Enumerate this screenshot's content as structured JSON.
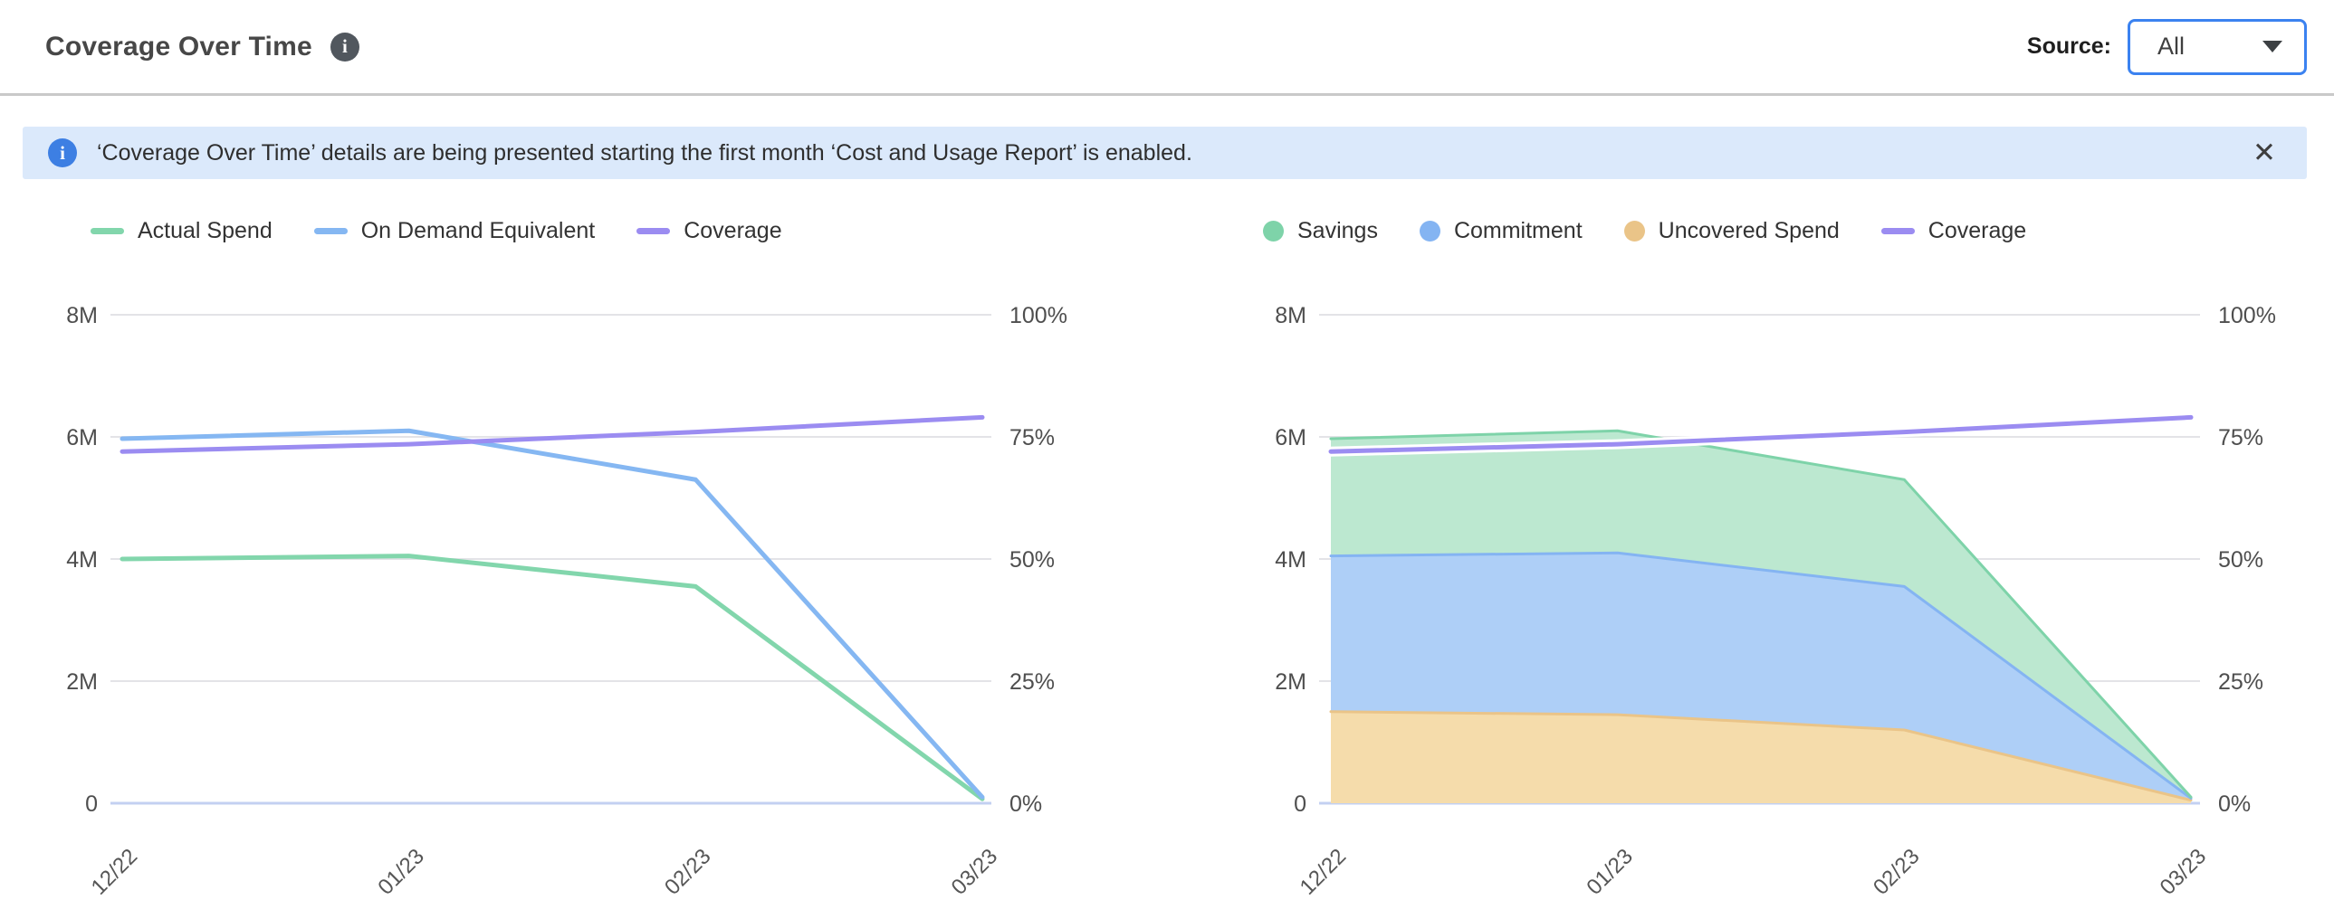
{
  "header": {
    "title": "Coverage Over Time",
    "info_icon": "i",
    "source_label": "Source:",
    "source_value": "All"
  },
  "banner": {
    "icon": "i",
    "text": "‘Coverage Over Time’ details are being presented starting the first month ‘Cost and Usage Report’ is enabled.",
    "close_icon": "✕"
  },
  "colors": {
    "green": "#7ed3a9",
    "blue": "#85b7f2",
    "purple": "#9b8cf1",
    "orange": "#eac488",
    "grid": "#e3e3e7",
    "baseline": "#c3d0f1",
    "axis_text": "#4e4e4e",
    "banner_bg": "#dbe9fb",
    "accent_blue": "#3b82f0"
  },
  "chart_data": [
    {
      "name": "spend-and-coverage-lines",
      "type": "line",
      "categories": [
        "12/22",
        "01/23",
        "02/23",
        "03/23"
      ],
      "left_axis": {
        "max": 8,
        "unit": "M",
        "tick_labels": [
          "8M",
          "6M",
          "4M",
          "2M",
          "0"
        ]
      },
      "right_axis": {
        "max": 100,
        "unit": "%",
        "tick_labels": [
          "100%",
          "75%",
          "50%",
          "25%",
          "0%"
        ]
      },
      "grid": true,
      "legend_position": "top",
      "series": [
        {
          "name": "Actual Spend",
          "marker": "line",
          "axis": "left",
          "unit": "M (millions USD)",
          "color": "#82d6ac",
          "values": [
            4.0,
            4.05,
            3.55,
            0.07
          ]
        },
        {
          "name": "On Demand Equivalent",
          "marker": "line",
          "axis": "left",
          "unit": "M (millions USD)",
          "color": "#85b7f2",
          "values": [
            5.97,
            6.1,
            5.3,
            0.1
          ]
        },
        {
          "name": "Coverage",
          "marker": "line",
          "axis": "right",
          "unit": "%",
          "color": "#9b8cf1",
          "values": [
            72,
            73.5,
            76,
            79
          ]
        }
      ]
    },
    {
      "name": "savings-commitment-uncovered-areas",
      "type": "area",
      "categories": [
        "12/22",
        "01/23",
        "02/23",
        "03/23"
      ],
      "left_axis": {
        "max": 8,
        "unit": "M",
        "tick_labels": [
          "8M",
          "6M",
          "4M",
          "2M",
          "0"
        ]
      },
      "right_axis": {
        "max": 100,
        "unit": "%",
        "tick_labels": [
          "100%",
          "75%",
          "50%",
          "25%",
          "0%"
        ]
      },
      "grid": true,
      "legend_position": "top",
      "series": [
        {
          "name": "Savings",
          "marker": "dot",
          "axis": "left",
          "stack": 3,
          "unit": "M (millions USD)",
          "color": "#7ed3a9",
          "fill": "#bce8d0",
          "values": [
            1.92,
            2.0,
            1.75,
            0.02
          ]
        },
        {
          "name": "Commitment",
          "marker": "dot",
          "axis": "left",
          "stack": 2,
          "unit": "M (millions USD)",
          "color": "#84b4f2",
          "fill": "#aecff7",
          "values": [
            2.55,
            2.65,
            2.35,
            0.03
          ]
        },
        {
          "name": "Uncovered Spend",
          "marker": "dot",
          "axis": "left",
          "stack": 1,
          "unit": "M (millions USD)",
          "color": "#eac488",
          "fill": "#f5dcab",
          "values": [
            1.5,
            1.45,
            1.2,
            0.05
          ]
        },
        {
          "name": "Coverage",
          "marker": "line",
          "axis": "right",
          "unit": "%",
          "color": "#9b8cf1",
          "values": [
            72,
            73.5,
            76,
            79
          ]
        }
      ]
    }
  ]
}
